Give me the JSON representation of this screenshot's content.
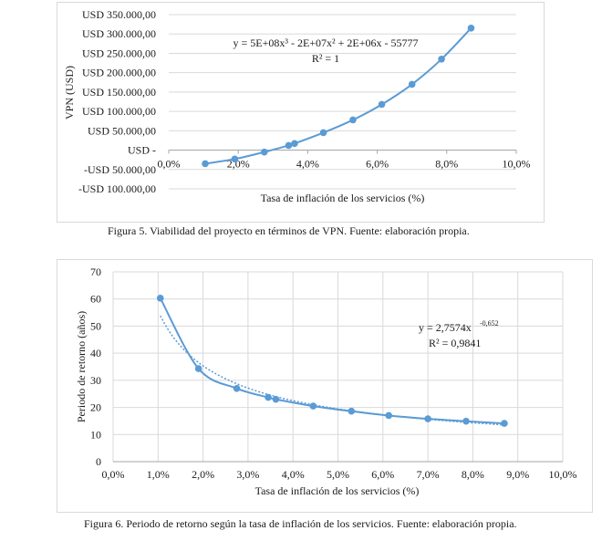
{
  "charts": [
    {
      "caption": "Figura 5. Viabilidad del proyecto en términos de VPN. Fuente: elaboración propia.",
      "chart_data": {
        "type": "scatter",
        "xlabel": "Tasa de inflación de los servicios (%)",
        "ylabel": "VPN (USD)",
        "xlim": [
          0,
          0.1
        ],
        "ylim": [
          -100000,
          350000
        ],
        "x_ticks": [
          0,
          0.02,
          0.04,
          0.06,
          0.08,
          0.1
        ],
        "x_tick_labels": [
          "0,0%",
          "2,0%",
          "4,0%",
          "6,0%",
          "8,0%",
          "10,0%"
        ],
        "y_ticks": [
          350000,
          300000,
          250000,
          200000,
          150000,
          100000,
          50000,
          0,
          -50000,
          -100000
        ],
        "y_tick_labels": [
          "USD 350.000,00",
          "USD 300.000,00",
          "USD 250.000,00",
          "USD 200.000,00",
          "USD 150.000,00",
          "USD 100.000,00",
          "USD 50.000,00",
          "USD -",
          "-USD 50.000,00",
          "-USD 100.000,00"
        ],
        "grid": "horizontal",
        "series": [
          {
            "x": [
              0.0105,
              0.019,
              0.0275,
              0.0345,
              0.0362,
              0.0445,
              0.053,
              0.0613,
              0.07,
              0.0785,
              0.087
            ],
            "y": [
              -35000,
              -23000,
              -5000,
              12000,
              17000,
              45000,
              78000,
              118000,
              170000,
              235000,
              315000
            ]
          }
        ],
        "annotation": {
          "equation": "y = 5E+08x³ - 2E+07x² + 2E+06x - 55777",
          "r2": "R² = 1"
        },
        "colors": {
          "series": "#5b9bd5",
          "grid": "#d9d9d9"
        }
      }
    },
    {
      "caption": "Figura 6. Periodo de retorno según la tasa de inflación de los servicios. Fuente: elaboración propia.",
      "chart_data": {
        "type": "scatter",
        "xlabel": "Tasa de inflación de los servicios (%)",
        "ylabel": "Periodo de retorno (años)",
        "xlim": [
          0,
          0.1
        ],
        "ylim": [
          0,
          70
        ],
        "x_ticks": [
          0,
          0.01,
          0.02,
          0.03,
          0.04,
          0.05,
          0.06,
          0.07,
          0.08,
          0.09,
          0.1
        ],
        "x_tick_labels": [
          "0,0%",
          "1,0%",
          "2,0%",
          "3,0%",
          "4,0%",
          "5,0%",
          "6,0%",
          "7,0%",
          "8,0%",
          "9,0%",
          "10,0%"
        ],
        "y_ticks": [
          0,
          10,
          20,
          30,
          40,
          50,
          60,
          70
        ],
        "y_tick_labels": [
          "0",
          "10",
          "20",
          "30",
          "40",
          "50",
          "60",
          "70"
        ],
        "grid": "both",
        "series": [
          {
            "x": [
              0.0105,
              0.019,
              0.0275,
              0.0345,
              0.0362,
              0.0445,
              0.053,
              0.0613,
              0.07,
              0.0785,
              0.087
            ],
            "y": [
              60.3,
              34.3,
              27.0,
              23.7,
              23.0,
              20.5,
              18.6,
              17.0,
              15.8,
              14.9,
              14.1
            ]
          }
        ],
        "trendline": {
          "type": "power",
          "a": 2.7574,
          "b": -0.652,
          "style": "dotted"
        },
        "annotation": {
          "equation": "y = 2,7574x",
          "exponent": "-0,652",
          "r2": "R² = 0,9841"
        },
        "colors": {
          "series": "#5b9bd5",
          "grid": "#d9d9d9"
        }
      }
    }
  ]
}
